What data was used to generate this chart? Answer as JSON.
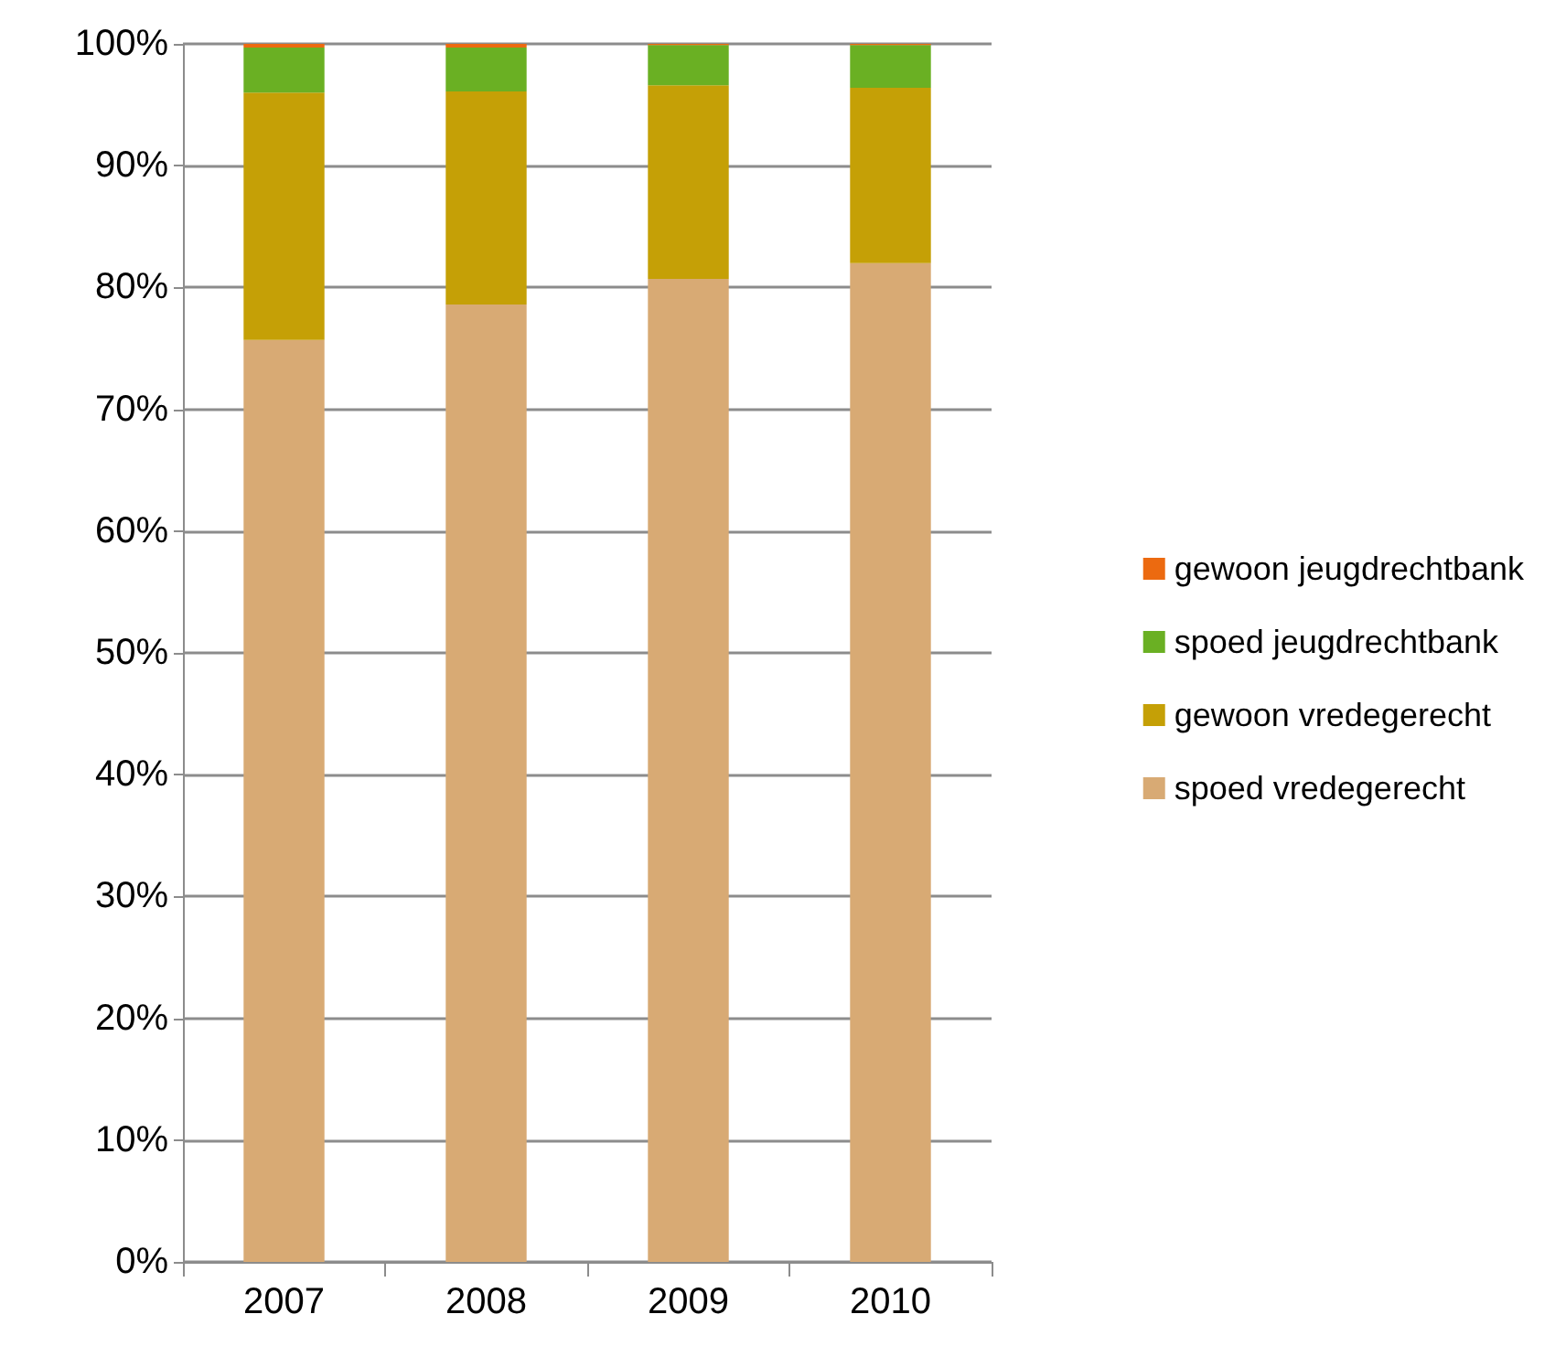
{
  "chart_data": {
    "type": "bar",
    "stacked": true,
    "categories": [
      "2007",
      "2008",
      "2009",
      "2010"
    ],
    "series": [
      {
        "name": "spoed vredegerecht",
        "color": "#d8aa74",
        "values": [
          75.7,
          78.6,
          80.7,
          82.0
        ]
      },
      {
        "name": "gewoon vredegerecht",
        "color": "#c5a006",
        "values": [
          20.3,
          17.5,
          15.9,
          14.4
        ]
      },
      {
        "name": "spoed jeugdrechtbank",
        "color": "#6ab023",
        "values": [
          3.7,
          3.6,
          3.3,
          3.5
        ]
      },
      {
        "name": "gewoon jeugdrechtbank",
        "color": "#ec6a10",
        "values": [
          0.3,
          0.3,
          0.1,
          0.1
        ]
      }
    ],
    "ylim": [
      0,
      100
    ],
    "yticks": [
      {
        "value": 0,
        "label": "0%"
      },
      {
        "value": 10,
        "label": "10%"
      },
      {
        "value": 20,
        "label": "20%"
      },
      {
        "value": 30,
        "label": "30%"
      },
      {
        "value": 40,
        "label": "40%"
      },
      {
        "value": 50,
        "label": "50%"
      },
      {
        "value": 60,
        "label": "60%"
      },
      {
        "value": 70,
        "label": "70%"
      },
      {
        "value": 80,
        "label": "80%"
      },
      {
        "value": 90,
        "label": "90%"
      },
      {
        "value": 100,
        "label": "100%"
      }
    ],
    "grid": "y",
    "legend": "right"
  }
}
